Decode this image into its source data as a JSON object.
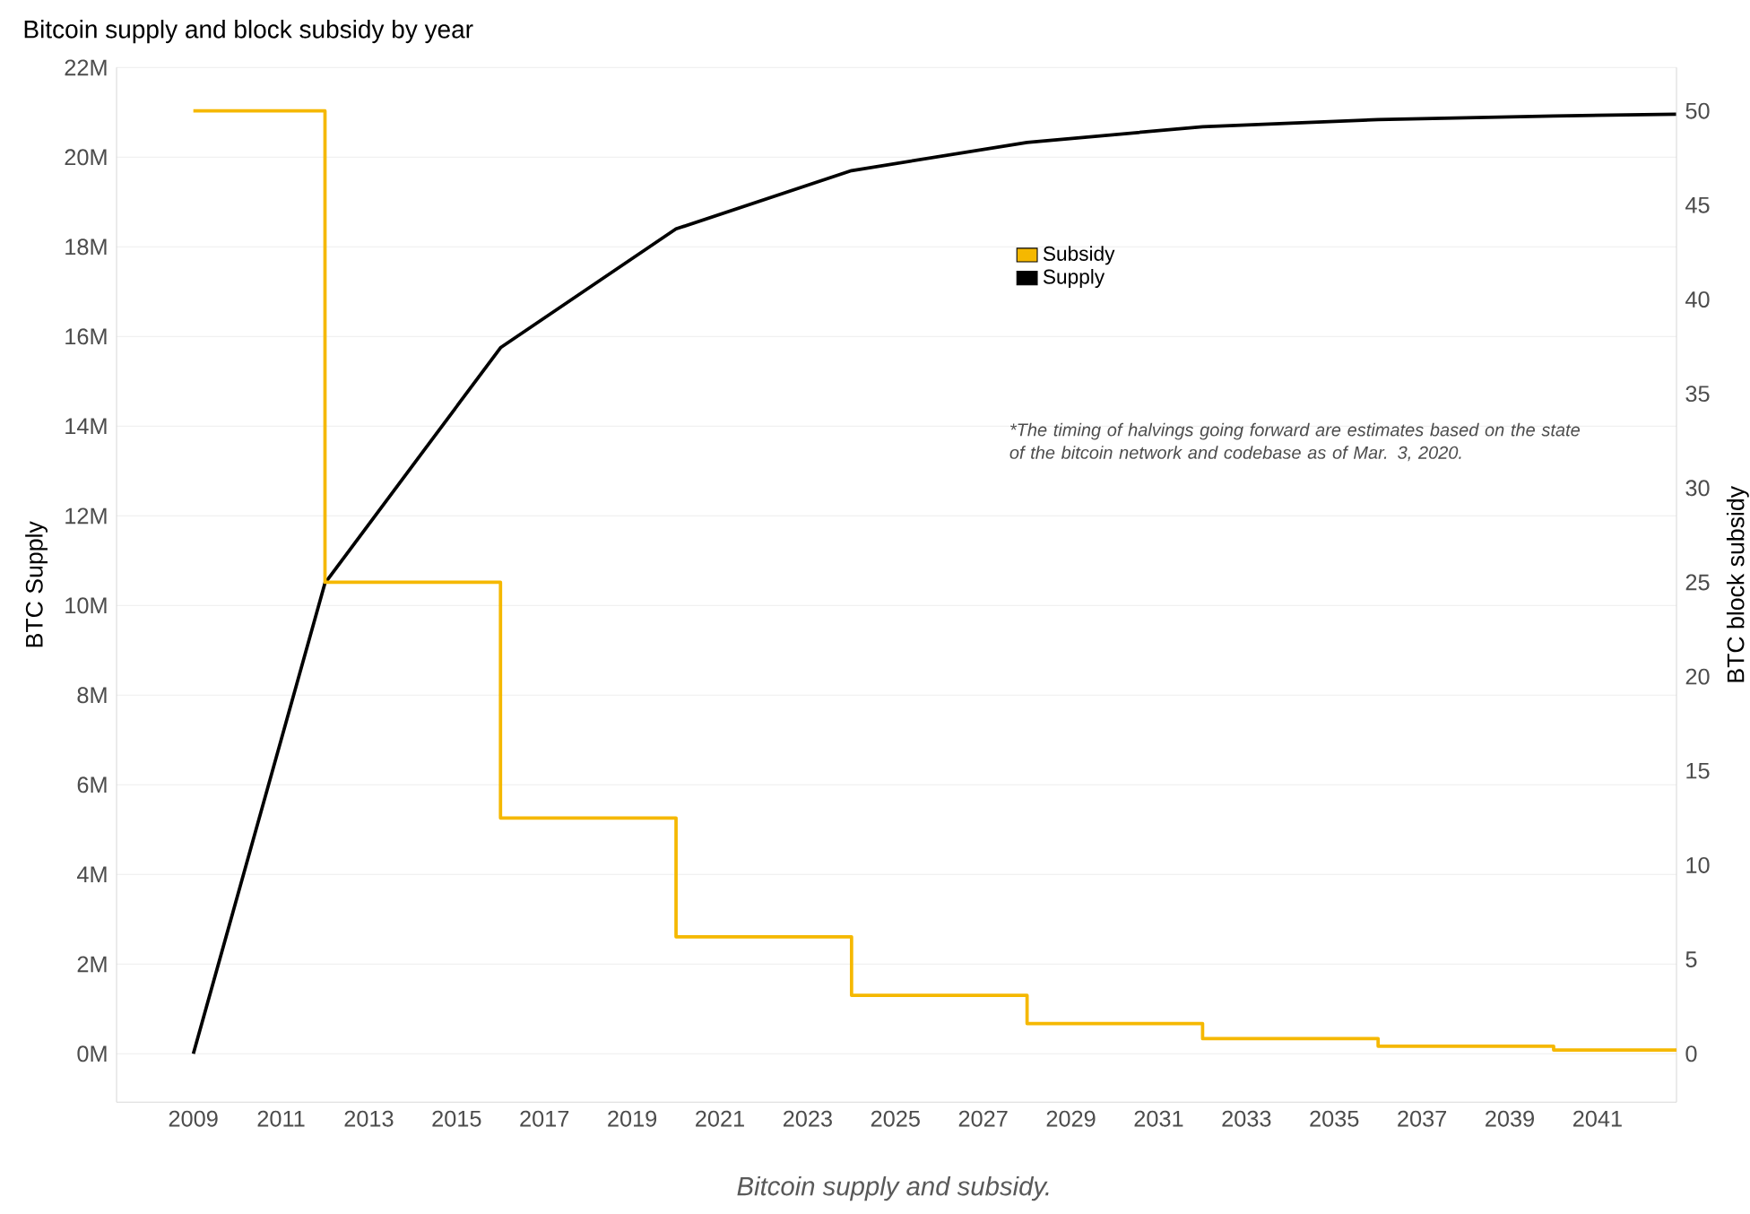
{
  "chart_data": {
    "type": "line",
    "title": "Bitcoin supply and block subsidy by year",
    "ylabel": "BTC Supply",
    "y2label": "BTC block subsidy",
    "annotations": [
      "*The timing of halvings going forward are estimates based on the state of the bitcoin network and codebase as of Mar. 3, 2020.",
      "Bitcoin supply and subsidy."
    ],
    "series": [
      {
        "name": "Subsidy",
        "type": "step",
        "axis": "y2",
        "color": "#f5b800",
        "x": [
          2009,
          2012,
          2016,
          2020,
          2024,
          2028,
          2032,
          2036,
          2040,
          2042.8
        ],
        "values": [
          50,
          25,
          12.5,
          6.2,
          3.1,
          1.6,
          0.8,
          0.4,
          0.2,
          0.2
        ]
      },
      {
        "name": "Supply",
        "color": "#000000",
        "x": [
          2009,
          2012,
          2016,
          2020,
          2024,
          2028,
          2032,
          2036,
          2040,
          2042.8
        ],
        "values": [
          0,
          10500000,
          15750000,
          18400000,
          19700000,
          20330000,
          20680000,
          20840000,
          20920000,
          20960000
        ]
      }
    ],
    "xlim": [
      2007.25,
      2042.8
    ],
    "xticks": [
      2009,
      2011,
      2013,
      2015,
      2017,
      2019,
      2021,
      2023,
      2025,
      2027,
      2029,
      2031,
      2033,
      2035,
      2037,
      2039,
      2041
    ],
    "ylim": [
      -1080000,
      22000000
    ],
    "yticks": [
      {
        "value": 0,
        "label": "0M"
      },
      {
        "value": 2000000,
        "label": "2M"
      },
      {
        "value": 4000000,
        "label": "4M"
      },
      {
        "value": 6000000,
        "label": "6M"
      },
      {
        "value": 8000000,
        "label": "8M"
      },
      {
        "value": 10000000,
        "label": "10M"
      },
      {
        "value": 12000000,
        "label": "12M"
      },
      {
        "value": 14000000,
        "label": "14M"
      },
      {
        "value": 16000000,
        "label": "16M"
      },
      {
        "value": 18000000,
        "label": "18M"
      },
      {
        "value": 20000000,
        "label": "20M"
      },
      {
        "value": 22000000,
        "label": "22M"
      }
    ],
    "y2lim": [
      -2.57,
      52.3
    ],
    "y2ticks": [
      0,
      5,
      10,
      15,
      20,
      25,
      30,
      35,
      40,
      45,
      50
    ],
    "grid": "y",
    "legend": "top"
  }
}
